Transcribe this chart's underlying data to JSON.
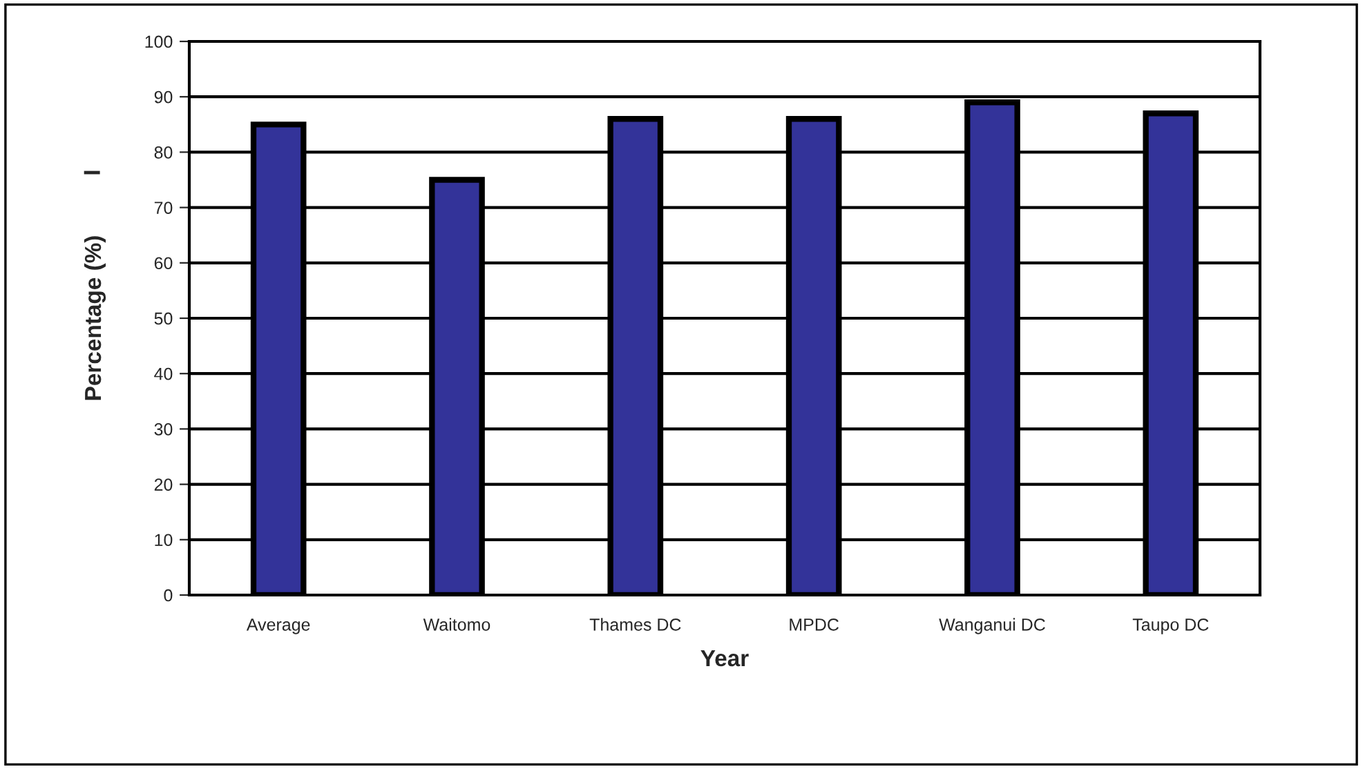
{
  "chart_data": {
    "type": "bar",
    "xlabel": "Year",
    "ylabel": "Percentage (%)",
    "annotations": [
      "I"
    ],
    "categories": [
      "Average",
      "Waitomo",
      "Thames DC",
      "MPDC",
      "Wanganui DC",
      "Taupo DC"
    ],
    "values": [
      85,
      75,
      86,
      86,
      89,
      87
    ],
    "color": "#333399",
    "ylim": [
      0,
      100
    ],
    "yticks": [
      0,
      10,
      20,
      30,
      40,
      50,
      60,
      70,
      80,
      90,
      100
    ],
    "grid": "y",
    "legend": false
  }
}
